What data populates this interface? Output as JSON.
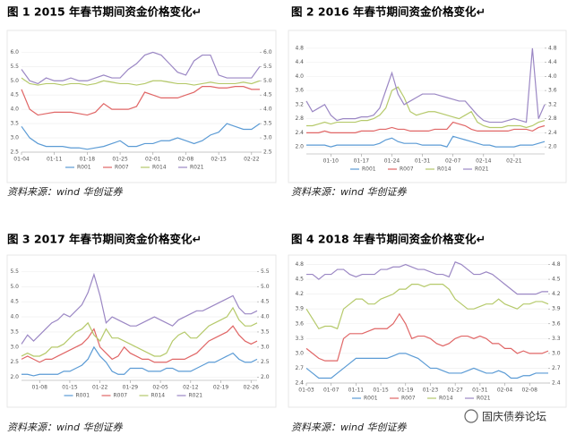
{
  "chart_data": [
    {
      "type": "line",
      "title": "图 1 2015 年春节期间资金价格变化↵",
      "source": "资料来源：wind 华创证券",
      "ylim": [
        2.5,
        6.2
      ],
      "yticks": [
        2.5,
        {
          "value": 3,
          "label": "3.0"
        },
        3.5,
        {
          "value": 4,
          "label": "4.0"
        },
        4.5,
        {
          "value": 5,
          "label": "5.0"
        },
        5.5,
        {
          "value": 6,
          "label": "6.0"
        }
      ],
      "y2lim": [
        2.5,
        6.2
      ],
      "y2ticks": [
        2.5,
        {
          "value": 3,
          "label": "3.0"
        },
        3.5,
        {
          "value": 4,
          "label": "4.0"
        },
        4.5,
        {
          "value": 5,
          "label": "5.0"
        },
        5.5,
        {
          "value": 6,
          "label": "6.0"
        }
      ],
      "categories": [
        "01-04",
        null,
        null,
        null,
        "01-11",
        null,
        null,
        null,
        "01-18",
        null,
        null,
        null,
        "01-25",
        null,
        null,
        null,
        "02-01",
        null,
        null,
        null,
        "02-08",
        null,
        null,
        null,
        "02-15",
        null,
        null,
        null,
        "02-22",
        null
      ],
      "series": [
        {
          "name": "R001",
          "color": "#5b9bd5",
          "values": [
            3.4,
            3.0,
            2.8,
            2.7,
            2.7,
            2.7,
            2.65,
            2.65,
            2.6,
            2.65,
            2.7,
            2.8,
            2.9,
            2.7,
            2.7,
            2.8,
            2.8,
            2.9,
            2.9,
            3.0,
            2.9,
            2.8,
            2.9,
            3.1,
            3.2,
            3.5,
            3.4,
            3.3,
            3.3,
            3.5
          ]
        },
        {
          "name": "R007",
          "color": "#e06666",
          "values": [
            4.7,
            4.0,
            3.8,
            3.85,
            3.9,
            3.9,
            3.9,
            3.85,
            3.8,
            3.9,
            4.2,
            4.0,
            4.0,
            4.0,
            4.1,
            4.6,
            4.5,
            4.4,
            4.4,
            4.4,
            4.5,
            4.6,
            4.8,
            4.8,
            4.75,
            4.75,
            4.8,
            4.8,
            4.7,
            4.7
          ]
        },
        {
          "name": "R014",
          "color": "#b5c96a",
          "values": [
            5.1,
            4.9,
            4.85,
            4.9,
            4.9,
            4.85,
            4.9,
            4.9,
            4.85,
            4.9,
            5.0,
            4.95,
            4.9,
            4.9,
            4.85,
            4.9,
            5.0,
            5.0,
            4.95,
            4.9,
            4.9,
            4.85,
            4.9,
            4.95,
            4.9,
            4.9,
            4.9,
            4.95,
            4.9,
            5.0
          ]
        },
        {
          "name": "R021",
          "color": "#9b87c4",
          "values": [
            5.4,
            5.0,
            4.9,
            5.1,
            5.0,
            5.0,
            5.1,
            5.0,
            5.0,
            5.1,
            5.2,
            5.1,
            5.1,
            5.4,
            5.6,
            5.9,
            6.0,
            5.9,
            5.6,
            5.3,
            5.2,
            5.7,
            5.9,
            5.9,
            5.2,
            5.1,
            5.1,
            5.1,
            5.1,
            5.5
          ]
        }
      ]
    },
    {
      "type": "line",
      "title": "图 2 2016 年春节期间资金价格变化↵",
      "source": "资料来源：wind 华创证券",
      "ylim": [
        1.8,
        5.0
      ],
      "yticks": [
        {
          "value": 2,
          "label": "2.0"
        },
        2.4,
        2.8,
        3.2,
        3.6,
        {
          "value": 4,
          "label": "4.0"
        },
        4.4,
        4.8
      ],
      "y2lim": [
        1.8,
        5.0
      ],
      "y2ticks": [
        {
          "value": 2,
          "label": "2.0"
        },
        2.4,
        2.8,
        3.2,
        3.6,
        {
          "value": 4,
          "label": "4.0"
        },
        4.4,
        4.8
      ],
      "categories": [
        null,
        null,
        null,
        null,
        "01-10",
        null,
        null,
        null,
        null,
        "01-17",
        null,
        null,
        null,
        null,
        "01-24",
        null,
        null,
        null,
        null,
        "01-31",
        null,
        null,
        null,
        null,
        "02-07",
        null,
        null,
        null,
        null,
        "02-14",
        null,
        null,
        null,
        null,
        "02-21",
        null,
        null,
        null,
        null,
        null
      ],
      "series": [
        {
          "name": "R001",
          "color": "#5b9bd5",
          "values": [
            2.05,
            2.05,
            2.05,
            2.05,
            2.0,
            2.05,
            2.05,
            2.05,
            2.05,
            2.05,
            2.05,
            2.05,
            2.1,
            2.2,
            2.25,
            2.15,
            2.1,
            2.1,
            2.1,
            2.05,
            2.05,
            2.05,
            2.05,
            2.0,
            2.3,
            2.25,
            2.2,
            2.15,
            2.1,
            2.05,
            2.05,
            2.0,
            2.0,
            2.0,
            2.0,
            2.05,
            2.05,
            2.05,
            2.1,
            2.15
          ]
        },
        {
          "name": "R007",
          "color": "#e06666",
          "values": [
            2.4,
            2.4,
            2.4,
            2.45,
            2.4,
            2.4,
            2.4,
            2.4,
            2.4,
            2.45,
            2.45,
            2.45,
            2.5,
            2.5,
            2.55,
            2.5,
            2.5,
            2.45,
            2.45,
            2.45,
            2.45,
            2.5,
            2.5,
            2.5,
            2.7,
            2.65,
            2.6,
            2.5,
            2.45,
            2.45,
            2.45,
            2.45,
            2.45,
            2.45,
            2.5,
            2.5,
            2.5,
            2.45,
            2.55,
            2.6
          ]
        },
        {
          "name": "R014",
          "color": "#b5c96a",
          "values": [
            2.6,
            2.6,
            2.65,
            2.7,
            2.65,
            2.7,
            2.7,
            2.7,
            2.7,
            2.75,
            2.75,
            2.8,
            2.9,
            3.1,
            3.6,
            3.7,
            3.4,
            3.0,
            2.9,
            2.95,
            3.0,
            3.0,
            2.95,
            2.9,
            2.85,
            2.8,
            2.9,
            3.0,
            2.7,
            2.6,
            2.55,
            2.55,
            2.55,
            2.6,
            2.6,
            2.6,
            2.55,
            2.6,
            2.7,
            2.75
          ]
        },
        {
          "name": "R021",
          "color": "#9b87c4",
          "values": [
            3.3,
            3.0,
            3.1,
            3.2,
            2.9,
            2.75,
            2.8,
            2.8,
            2.8,
            2.85,
            2.85,
            2.9,
            3.1,
            3.6,
            4.1,
            3.5,
            3.2,
            3.3,
            3.4,
            3.5,
            3.5,
            3.5,
            3.45,
            3.4,
            3.35,
            3.3,
            3.3,
            3.1,
            2.9,
            2.75,
            2.7,
            2.7,
            2.7,
            2.75,
            2.8,
            2.75,
            2.7,
            4.8,
            2.8,
            3.2
          ]
        }
      ]
    },
    {
      "type": "line",
      "title": "图 3 2017 年春节期间资金价格变化↵",
      "source": "资料来源：wind 华创证券",
      "ylim": [
        1.9,
        5.6
      ],
      "yticks": [
        {
          "value": 2,
          "label": "2.0"
        },
        2.5,
        {
          "value": 3,
          "label": "3.0"
        },
        3.5,
        {
          "value": 4,
          "label": "4.0"
        },
        4.5,
        {
          "value": 5,
          "label": "5.0"
        },
        5.5
      ],
      "y2lim": [
        1.9,
        5.6
      ],
      "y2ticks": [
        {
          "value": 2,
          "label": "2.0"
        },
        2.5,
        {
          "value": 3,
          "label": "3.0"
        },
        3.5,
        {
          "value": 4,
          "label": "4.0"
        },
        4.5,
        {
          "value": 5,
          "label": "5.0"
        },
        5.5
      ],
      "categories": [
        null,
        null,
        null,
        "01-08",
        null,
        null,
        null,
        null,
        "01-15",
        null,
        null,
        null,
        null,
        "01-22",
        null,
        null,
        null,
        null,
        "01-29",
        null,
        null,
        null,
        null,
        "02-05",
        null,
        null,
        null,
        null,
        "02-12",
        null,
        null,
        null,
        null,
        "02-19",
        null,
        null,
        null,
        null,
        "02-26",
        null
      ],
      "series": [
        {
          "name": "R001",
          "color": "#5b9bd5",
          "values": [
            2.1,
            2.1,
            2.05,
            2.1,
            2.1,
            2.1,
            2.1,
            2.2,
            2.2,
            2.3,
            2.4,
            2.6,
            3.0,
            2.7,
            2.5,
            2.2,
            2.1,
            2.1,
            2.3,
            2.3,
            2.3,
            2.2,
            2.2,
            2.2,
            2.3,
            2.3,
            2.2,
            2.2,
            2.2,
            2.3,
            2.4,
            2.5,
            2.5,
            2.6,
            2.7,
            2.8,
            2.6,
            2.5,
            2.5,
            2.6
          ]
        },
        {
          "name": "R007",
          "color": "#e06666",
          "values": [
            2.6,
            2.7,
            2.6,
            2.5,
            2.6,
            2.6,
            2.7,
            2.8,
            2.9,
            3.0,
            3.1,
            3.3,
            3.6,
            3.0,
            2.8,
            2.6,
            2.7,
            3.0,
            2.8,
            2.7,
            2.6,
            2.6,
            2.5,
            2.5,
            2.5,
            2.6,
            2.6,
            2.6,
            2.7,
            2.8,
            3.0,
            3.2,
            3.3,
            3.4,
            3.5,
            3.7,
            3.4,
            3.2,
            3.1,
            3.2
          ]
        },
        {
          "name": "R014",
          "color": "#b5c96a",
          "values": [
            2.7,
            2.8,
            2.7,
            2.7,
            2.8,
            3.0,
            3.0,
            3.1,
            3.3,
            3.5,
            3.6,
            3.8,
            3.4,
            3.2,
            3.6,
            3.3,
            3.3,
            3.2,
            3.1,
            3.0,
            2.9,
            2.8,
            2.7,
            2.7,
            2.8,
            3.2,
            3.4,
            3.5,
            3.3,
            3.3,
            3.5,
            3.7,
            3.8,
            3.9,
            4.0,
            4.3,
            3.9,
            3.7,
            3.7,
            3.8
          ]
        },
        {
          "name": "R021",
          "color": "#9b87c4",
          "values": [
            3.1,
            3.4,
            3.2,
            3.4,
            3.6,
            3.8,
            3.9,
            4.1,
            4.0,
            4.2,
            4.4,
            4.8,
            5.4,
            4.7,
            3.8,
            4.0,
            3.9,
            3.8,
            3.7,
            3.7,
            3.8,
            3.9,
            4.0,
            3.9,
            3.8,
            3.7,
            3.9,
            4.0,
            4.1,
            4.2,
            4.2,
            4.3,
            4.4,
            4.5,
            4.6,
            4.7,
            4.3,
            4.1,
            4.1,
            4.2
          ]
        }
      ]
    },
    {
      "type": "line",
      "title": "图 4 2018 年春节期间资金价格变化↵",
      "source": "资料来源：wind 华创证券",
      "ylim": [
        2.4,
        4.9
      ],
      "yticks": [
        2.4,
        2.7,
        {
          "value": 3,
          "label": "3.0"
        },
        3.3,
        3.6,
        3.9,
        4.2,
        4.5,
        4.8
      ],
      "y2lim": [
        2.4,
        4.9
      ],
      "y2ticks": [
        2.4,
        2.7,
        {
          "value": 3,
          "label": "3.0"
        },
        3.3,
        3.6,
        3.9,
        4.2,
        4.5,
        4.8
      ],
      "categories": [
        "01-03",
        null,
        null,
        null,
        "01-07",
        null,
        null,
        null,
        "01-11",
        null,
        null,
        null,
        "01-15",
        null,
        null,
        null,
        "01-19",
        null,
        null,
        null,
        "01-23",
        null,
        null,
        null,
        "01-27",
        null,
        null,
        null,
        "01-31",
        null,
        null,
        null,
        "02-04",
        null,
        null,
        null,
        "02-08",
        null,
        null,
        null
      ],
      "series": [
        {
          "name": "R001",
          "color": "#5b9bd5",
          "values": [
            2.7,
            2.6,
            2.5,
            2.5,
            2.5,
            2.6,
            2.7,
            2.8,
            2.9,
            2.9,
            2.9,
            2.9,
            2.9,
            2.9,
            2.95,
            3.0,
            3.0,
            2.95,
            2.9,
            2.8,
            2.7,
            2.7,
            2.65,
            2.6,
            2.6,
            2.6,
            2.65,
            2.7,
            2.65,
            2.6,
            2.6,
            2.65,
            2.6,
            2.5,
            2.5,
            2.55,
            2.55,
            2.6,
            2.6,
            2.6
          ]
        },
        {
          "name": "R007",
          "color": "#e06666",
          "values": [
            3.1,
            3.0,
            2.9,
            2.85,
            2.85,
            2.85,
            3.3,
            3.4,
            3.4,
            3.4,
            3.45,
            3.5,
            3.5,
            3.5,
            3.6,
            3.8,
            3.6,
            3.3,
            3.35,
            3.35,
            3.3,
            3.2,
            3.15,
            3.2,
            3.3,
            3.35,
            3.35,
            3.3,
            3.35,
            3.3,
            3.2,
            3.2,
            3.1,
            3.1,
            3.0,
            3.05,
            3.0,
            3.0,
            3.0,
            3.05
          ]
        },
        {
          "name": "R014",
          "color": "#b5c96a",
          "values": [
            3.9,
            3.7,
            3.5,
            3.55,
            3.55,
            3.5,
            3.9,
            4.0,
            4.1,
            4.1,
            4.0,
            4.0,
            4.1,
            4.15,
            4.2,
            4.3,
            4.3,
            4.4,
            4.4,
            4.35,
            4.4,
            4.4,
            4.4,
            4.3,
            4.1,
            4.0,
            3.9,
            3.9,
            3.95,
            4.0,
            4.0,
            4.1,
            4.0,
            3.95,
            3.9,
            4.0,
            4.0,
            4.05,
            4.05,
            4.0
          ]
        },
        {
          "name": "R021",
          "color": "#9b87c4",
          "values": [
            4.6,
            4.6,
            4.5,
            4.6,
            4.6,
            4.7,
            4.7,
            4.6,
            4.55,
            4.6,
            4.6,
            4.6,
            4.7,
            4.7,
            4.75,
            4.75,
            4.8,
            4.75,
            4.7,
            4.7,
            4.65,
            4.6,
            4.6,
            4.55,
            4.85,
            4.8,
            4.7,
            4.6,
            4.6,
            4.65,
            4.6,
            4.5,
            4.4,
            4.3,
            4.2,
            4.2,
            4.2,
            4.2,
            4.25,
            4.25
          ]
        }
      ]
    }
  ],
  "watermark": "固庆债券论坛"
}
